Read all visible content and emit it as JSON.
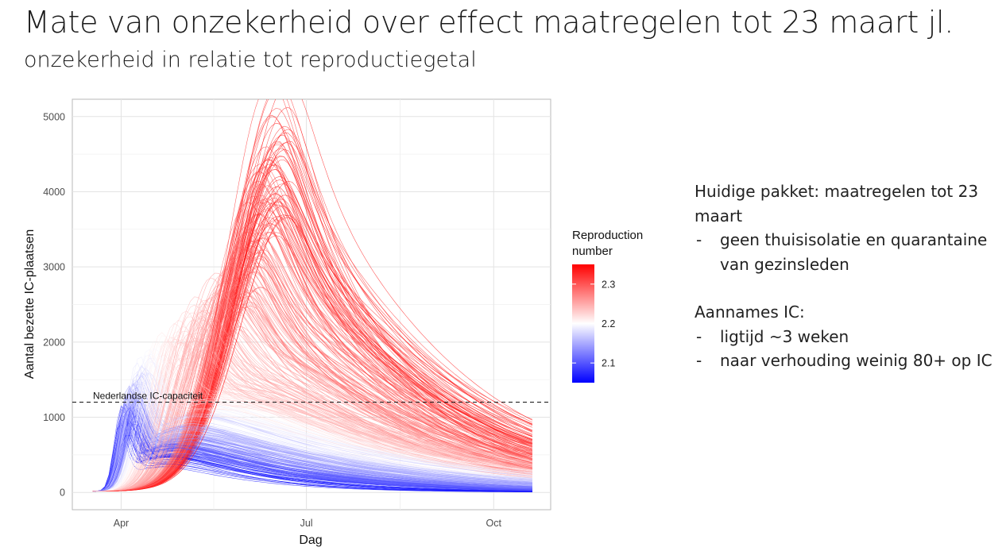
{
  "slide": {
    "title": "Mate van onzekerheid over effect maatregelen tot 23 maart jl.",
    "subtitle": "onzekerheid in relatie tot reproductiegetal"
  },
  "notes": {
    "block1_heading": "Huidige pakket: maatregelen tot 23 maart",
    "block1_items": [
      "geen thuisisolatie en quarantaine van gezinsleden"
    ],
    "block2_heading": "Aannames IC:",
    "block2_items": [
      "ligtijd ~3 weken",
      "naar verhouding weinig 80+ op IC"
    ]
  },
  "chart_data": {
    "type": "line",
    "xlabel": "Dag",
    "ylabel": "Aantal bezette IC-plaatsen",
    "x_tick_labels": [
      "Apr",
      "Jul",
      "Oct"
    ],
    "x_tick_dates": [
      "2020-04-01",
      "2020-07-01",
      "2020-10-01"
    ],
    "x_range": [
      "2020-03-08",
      "2020-10-29"
    ],
    "ylim": [
      -230,
      5230
    ],
    "y_ticks": [
      0,
      1000,
      2000,
      3000,
      4000,
      5000
    ],
    "grid": true,
    "reference_line": {
      "label": "Nederlandse IC-capaciteit",
      "y": 1200,
      "style": "dashed"
    },
    "legend": {
      "title": "Reproduction number",
      "placement": "right",
      "ticks": [
        2.1,
        2.2,
        2.3
      ],
      "range": [
        2.05,
        2.35
      ],
      "colors": {
        "low": "#0000ff",
        "mid": "#ffffff",
        "high": "#ff0000"
      }
    },
    "series_start_date": "2020-03-18",
    "series_end_date": "2020-10-20",
    "series_count": 420,
    "series": [
      {
        "r": 2.06,
        "start_date": "2020-03-18",
        "peak_date": "2020-04-04",
        "peak_value": 850,
        "end_date": "2020-10-20",
        "end_value": 8
      },
      {
        "r": 2.12,
        "start_date": "2020-03-18",
        "peak_date": "2020-04-06",
        "peak_value": 1100,
        "end_date": "2020-10-20",
        "end_value": 60
      },
      {
        "r": 2.18,
        "start_date": "2020-03-18",
        "peak_date": "2020-04-10",
        "peak_value": 1500,
        "end_date": "2020-10-20",
        "end_value": 180
      },
      {
        "r": 2.23,
        "start_date": "2020-03-18",
        "peak_date": "2020-05-01",
        "peak_value": 2000,
        "end_date": "2020-10-20",
        "end_value": 280
      },
      {
        "r": 2.28,
        "start_date": "2020-03-18",
        "peak_date": "2020-06-01",
        "peak_value": 2800,
        "end_date": "2020-10-20",
        "end_value": 420
      },
      {
        "r": 2.33,
        "start_date": "2020-03-18",
        "peak_date": "2020-06-19",
        "peak_value": 4400,
        "end_date": "2020-10-20",
        "end_value": 700
      }
    ]
  }
}
